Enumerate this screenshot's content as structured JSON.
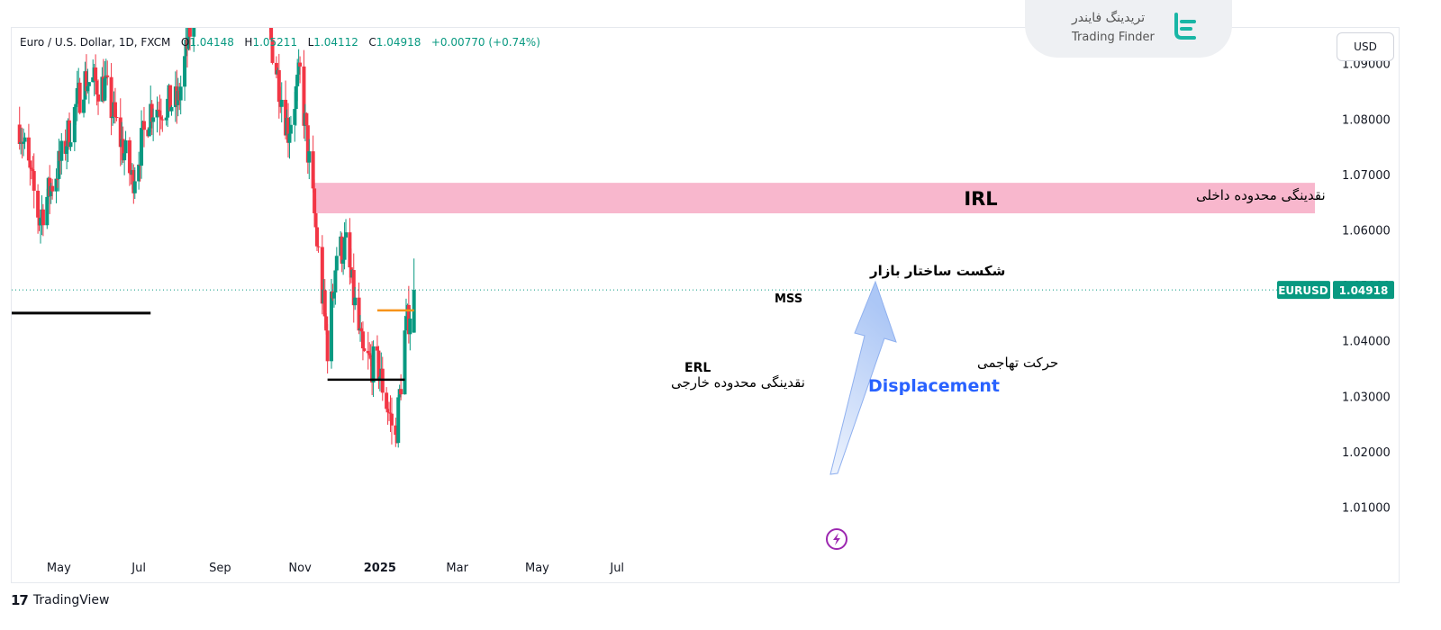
{
  "header": {
    "symbol_title": "Euro / U.S. Dollar, 1D, FXCM",
    "ohlc": [
      {
        "label": "O",
        "value": "1.04148"
      },
      {
        "label": "H",
        "value": "1.05211"
      },
      {
        "label": "L",
        "value": "1.04112"
      },
      {
        "label": "C",
        "value": "1.04918"
      }
    ],
    "change": "+0.00770 (+0.74%)"
  },
  "brand": {
    "name_fa": "تریدینگ فایندر",
    "name_en": "Trading Finder"
  },
  "currency_button": "USD",
  "footer": {
    "logo_text": "TradingView"
  },
  "colors": {
    "up": "#089981",
    "down": "#f23645",
    "zone": "#f8b7cd",
    "mss": "#f7931a",
    "arrow": "#a8c4f5",
    "accent_text": "#2962ff",
    "price_badge": "#089981",
    "event_icon": "#9c27b0"
  },
  "chart_data": {
    "type": "candlestick",
    "symbol": "EURUSD",
    "timeframe": "1D",
    "last_price": 1.04918,
    "last_price_label": "1.04918",
    "symbol_label": "EURUSD",
    "y_axis": {
      "range": [
        1.0,
        1.1
      ],
      "ticks": [
        "1.09000",
        "1.08000",
        "1.07000",
        "1.06000",
        "1.05000",
        "1.04000",
        "1.03000",
        "1.02000",
        "1.01000"
      ],
      "tick_values": [
        1.09,
        1.08,
        1.07,
        1.06,
        1.05,
        1.04,
        1.03,
        1.02,
        1.01
      ]
    },
    "x_axis": {
      "ticks": [
        "May",
        "Jul",
        "Sep",
        "Nov",
        "2025",
        "Mar",
        "May",
        "Jul"
      ]
    },
    "price_path": [
      {
        "date": "2024-04-01",
        "price": 1.079
      },
      {
        "date": "2024-04-16",
        "price": 1.062
      },
      {
        "date": "2024-05-03",
        "price": 1.073
      },
      {
        "date": "2024-05-20",
        "price": 1.087
      },
      {
        "date": "2024-06-05",
        "price": 1.086
      },
      {
        "date": "2024-06-26",
        "price": 1.069
      },
      {
        "date": "2024-07-10",
        "price": 1.082
      },
      {
        "date": "2024-07-31",
        "price": 1.083
      },
      {
        "date": "2024-08-25",
        "price": 1.119
      },
      {
        "date": "2024-09-25",
        "price": 1.117
      },
      {
        "date": "2024-10-10",
        "price": 1.094
      },
      {
        "date": "2024-10-23",
        "price": 1.078
      },
      {
        "date": "2024-11-01",
        "price": 1.088
      },
      {
        "date": "2024-11-08",
        "price": 1.072
      },
      {
        "date": "2024-11-22",
        "price": 1.039
      },
      {
        "date": "2024-11-29",
        "price": 1.056
      },
      {
        "date": "2024-12-06",
        "price": 1.057
      },
      {
        "date": "2024-12-19",
        "price": 1.037
      },
      {
        "date": "2024-12-31",
        "price": 1.035
      },
      {
        "date": "2025-01-13",
        "price": 1.022
      },
      {
        "date": "2025-01-20",
        "price": 1.041
      },
      {
        "date": "2025-01-27",
        "price": 1.049
      }
    ],
    "annotations": {
      "irl_zone": {
        "label": "IRL",
        "label_fa": "نقدینگی محدوده داخلی",
        "from_date": "2024-11-12",
        "price_top": 1.0685,
        "price_bottom": 1.063
      },
      "erl_line": {
        "label": "ERL",
        "label_fa": "نقدینگی محدوده خارجی",
        "from_date": "2024-11-22",
        "to_date": "2025-01-20",
        "price": 1.033
      },
      "mss_line": {
        "label": "MSS",
        "label_fa": "شکست ساختار بازار",
        "from_date": "2024-12-30",
        "to_date": "2025-01-27",
        "price": 1.0455
      },
      "displacement": {
        "label": "Displacement",
        "label_fa": "حرکت تهاجمی"
      },
      "left_line": {
        "from_date": "2024-03-26",
        "to_date": "2024-07-10",
        "price": 1.045
      }
    }
  }
}
